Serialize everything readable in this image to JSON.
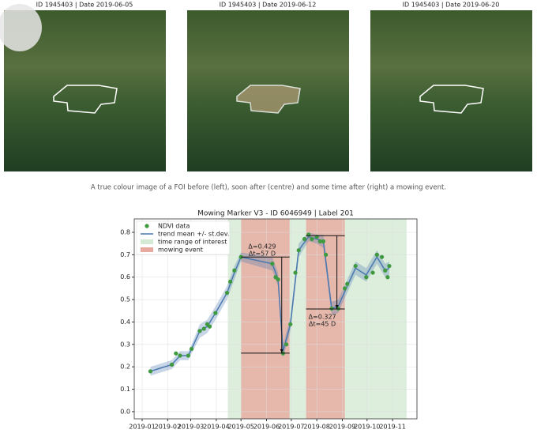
{
  "images": [
    {
      "title": "ID 1945403 | Date 2019-06-05"
    },
    {
      "title": "ID 1945403 | Date 2019-06-12"
    },
    {
      "title": "ID 1945403 | Date 2019-06-20"
    }
  ],
  "caption": "A true colour image of a FOI before (left), soon after (centre) and some time after (right) a mowing event.",
  "chart_data": {
    "type": "scatter",
    "title": "Mowing Marker V3 - ID 6046949 | Label 201",
    "xlim": [
      -9.6,
      333.6
    ],
    "ylim": [
      -0.032,
      0.86
    ],
    "grid": true,
    "legend": "upper left",
    "xticks": [
      {
        "value": 0,
        "label": "2019-01"
      },
      {
        "value": 31,
        "label": "2019-02"
      },
      {
        "value": 59,
        "label": "2019-03"
      },
      {
        "value": 90,
        "label": "2019-04"
      },
      {
        "value": 120,
        "label": "2019-05"
      },
      {
        "value": 151,
        "label": "2019-06"
      },
      {
        "value": 181,
        "label": "2019-07"
      },
      {
        "value": 212,
        "label": "2019-08"
      },
      {
        "value": 243,
        "label": "2019-09"
      },
      {
        "value": 273,
        "label": "2019-10"
      },
      {
        "value": 304,
        "label": "2019-11"
      }
    ],
    "yticks": [
      {
        "value": 0,
        "label": "0.0"
      },
      0.1,
      0.2,
      0.3,
      0.4,
      0.5,
      0.6,
      0.7,
      0.8
    ],
    "spans": [
      {
        "name": "time range of interest",
        "color": "#d5ead5",
        "ranges": [
          [
            104,
            321
          ]
        ]
      },
      {
        "name": "mowing event",
        "color": "#e8aaa0",
        "ranges": [
          [
            120,
            179
          ],
          [
            199,
            246
          ]
        ]
      }
    ],
    "series": [
      {
        "name": "NDVI data",
        "color": "#3f9a3f",
        "x": [
          10,
          36,
          41,
          46,
          56,
          60,
          70,
          75,
          79,
          82,
          89,
          103,
          107,
          112,
          120,
          158,
          162,
          165,
          171,
          175,
          180,
          186,
          190,
          197,
          202,
          206,
          212,
          216,
          220,
          223,
          230,
          238,
          246,
          249,
          259,
          272,
          280,
          285,
          291,
          295,
          298,
          300
        ],
        "values": [
          0.18,
          0.21,
          0.26,
          0.25,
          0.25,
          0.28,
          0.36,
          0.37,
          0.39,
          0.38,
          0.44,
          0.53,
          0.58,
          0.63,
          0.69,
          0.66,
          0.6,
          0.59,
          0.26,
          0.3,
          0.39,
          0.62,
          0.72,
          0.77,
          0.79,
          0.77,
          0.78,
          0.76,
          0.76,
          0.7,
          0.46,
          0.46,
          0.55,
          0.57,
          0.65,
          0.6,
          0.62,
          0.7,
          0.69,
          0.63,
          0.6,
          0.65
        ]
      },
      {
        "name": "trend mean +/- st.dev.",
        "color": "#4a78b0",
        "x": [
          10,
          36,
          46,
          56,
          60,
          70,
          79,
          89,
          103,
          112,
          120,
          158,
          165,
          171,
          180,
          190,
          202,
          212,
          220,
          230,
          238,
          249,
          259,
          272,
          285,
          295,
          300
        ],
        "values": [
          0.18,
          0.21,
          0.25,
          0.25,
          0.28,
          0.36,
          0.38,
          0.44,
          0.53,
          0.62,
          0.69,
          0.66,
          0.59,
          0.27,
          0.39,
          0.72,
          0.78,
          0.77,
          0.76,
          0.46,
          0.47,
          0.56,
          0.64,
          0.61,
          0.69,
          0.63,
          0.64
        ],
        "std": [
          0.02,
          0.02,
          0.02,
          0.02,
          0.02,
          0.03,
          0.03,
          0.03,
          0.03,
          0.03,
          0.02,
          0.03,
          0.03,
          0.03,
          0.03,
          0.03,
          0.02,
          0.02,
          0.03,
          0.03,
          0.03,
          0.03,
          0.03,
          0.03,
          0.03,
          0.03,
          0.03
        ]
      }
    ],
    "events": [
      {
        "start": 120,
        "end": 179,
        "top": 0.69,
        "bottom": 0.261,
        "label": "Δ=0.429",
        "label2": "Δt=57 D"
      },
      {
        "start": 199,
        "end": 246,
        "top": 0.785,
        "bottom": 0.458,
        "label": "Δ=0.327",
        "label2": "Δt=45 D"
      }
    ]
  }
}
